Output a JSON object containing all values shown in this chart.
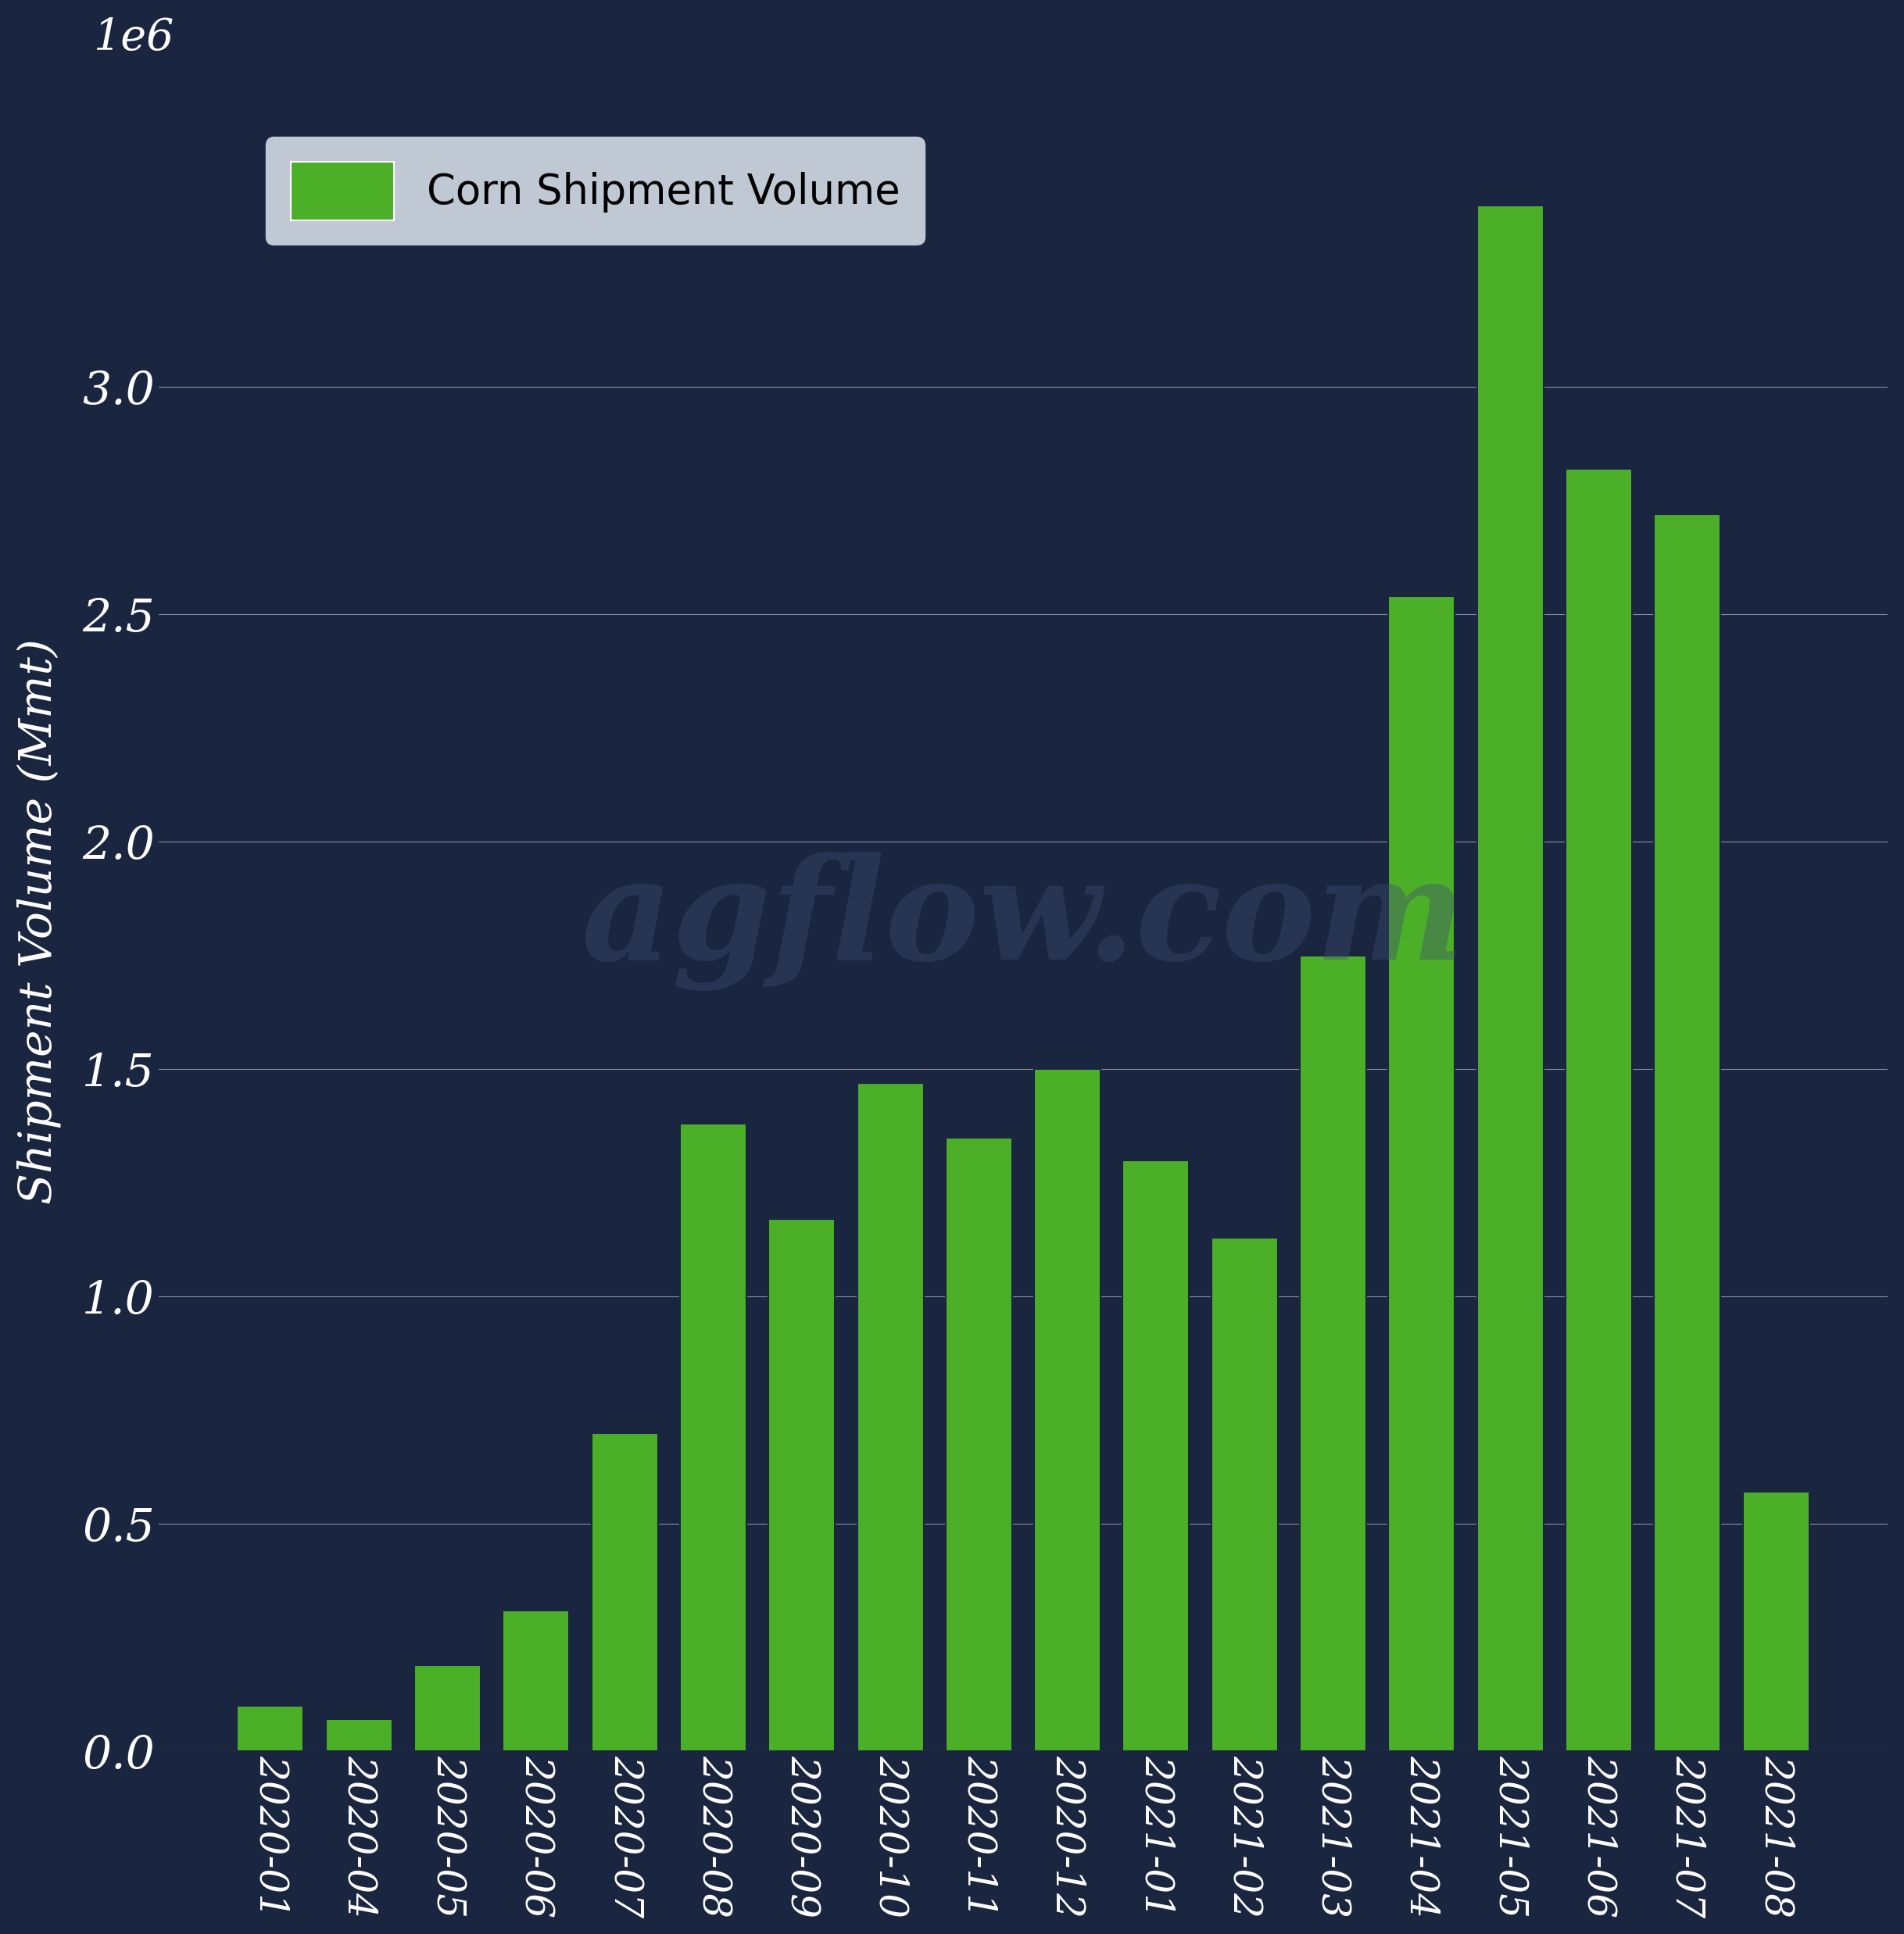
{
  "categories": [
    "2020-01",
    "2020-04",
    "2020-05",
    "2020-06",
    "2020-07",
    "2020-08",
    "2020-09",
    "2020-10",
    "2020-11",
    "2020-12",
    "2021-01",
    "2021-02",
    "2021-03",
    "2021-04",
    "2021-05",
    "2021-06",
    "2021-07",
    "2021-08"
  ],
  "values": [
    0.1,
    0.07,
    0.19,
    0.31,
    0.7,
    1.38,
    1.17,
    1.47,
    1.35,
    1.5,
    1.3,
    1.13,
    1.75,
    2.54,
    3.4,
    2.82,
    2.72,
    0.57
  ],
  "bar_color": "#4caf28",
  "bar_edge_color": "#1a2540",
  "background_color": "#1a2540",
  "axes_bg_color": "#1a2540",
  "text_color": "#ffffff",
  "grid_color": "#ffffff",
  "ylabel": "Shipment Volume (Mmt)",
  "legend_label": "Corn Shipment Volume",
  "legend_bg": "#c0c8d4",
  "legend_edge": "#c0c8d4",
  "ylim": [
    0,
    3.65
  ],
  "yticks": [
    0.0,
    0.5,
    1.0,
    1.5,
    2.0,
    2.5,
    3.0
  ],
  "bar_width": 0.75,
  "title_offset_label": "1e6"
}
